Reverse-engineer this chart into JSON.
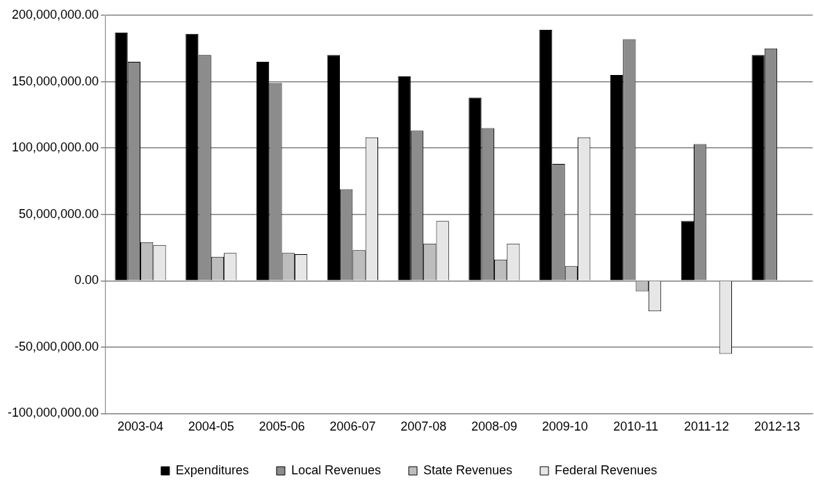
{
  "chart_data": {
    "type": "bar",
    "categories": [
      "2003-04",
      "2004-05",
      "2005-06",
      "2006-07",
      "2007-08",
      "2008-09",
      "2009-10",
      "2010-11",
      "2011-12",
      "2012-13"
    ],
    "series": [
      {
        "name": "Expenditures",
        "color": "#000000",
        "values": [
          187000000,
          186000000,
          165000000,
          170000000,
          154000000,
          138000000,
          189000000,
          155000000,
          45000000,
          170000000
        ]
      },
      {
        "name": "Local Revenues",
        "color": "#8c8c8c",
        "values": [
          165000000,
          170000000,
          149000000,
          69000000,
          113000000,
          115000000,
          88000000,
          182000000,
          103000000,
          175000000
        ]
      },
      {
        "name": "State Revenues",
        "color": "#bdbdbd",
        "values": [
          29000000,
          18000000,
          21000000,
          23000000,
          28000000,
          16000000,
          11000000,
          -8000000,
          null,
          null
        ]
      },
      {
        "name": "Federal Revenues",
        "color": "#e6e6e6",
        "values": [
          27000000,
          21000000,
          20000000,
          108000000,
          45000000,
          28000000,
          108000000,
          -23000000,
          -55000000,
          null
        ]
      }
    ],
    "ylim": [
      -100000000,
      200000000
    ],
    "yticks": [
      {
        "value": -100000000,
        "label": "-100,000,000.00"
      },
      {
        "value": -50000000,
        "label": "-50,000,000.00"
      },
      {
        "value": 0,
        "label": "0.00"
      },
      {
        "value": 50000000,
        "label": "50,000,000.00"
      },
      {
        "value": 100000000,
        "label": "100,000,000.00"
      },
      {
        "value": 150000000,
        "label": "150,000,000.00"
      },
      {
        "value": 200000000,
        "label": "200,000,000.00"
      }
    ],
    "grid": "y",
    "legend": "bottom"
  }
}
